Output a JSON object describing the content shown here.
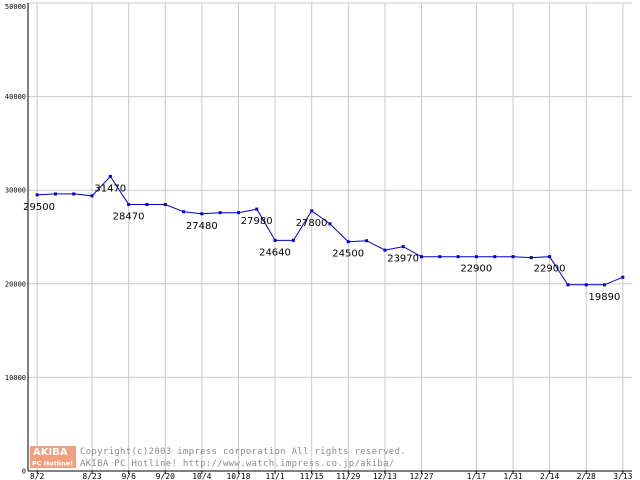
{
  "chart_data": {
    "type": "line",
    "title": "",
    "xlabel": "",
    "ylabel": "",
    "ylim": [
      0,
      50000
    ],
    "y_ticks": [
      "0",
      "10000",
      "20000",
      "30000",
      "40000",
      "50000"
    ],
    "x_tick_labels": [
      "8/2",
      "8/23",
      "9/6",
      "9/20",
      "10/4",
      "10/18",
      "11/1",
      "11/15",
      "11/29",
      "12/13",
      "12/27",
      "1/17",
      "1/31",
      "2/14",
      "2/28",
      "3/13"
    ],
    "grid": true,
    "line_color": "#0000cc",
    "grid_color": "#c8c8c8",
    "x": [
      "8/2",
      "8/9",
      "8/16",
      "8/23",
      "8/30",
      "9/6",
      "9/13",
      "9/20",
      "9/27",
      "10/4",
      "10/11",
      "10/18",
      "10/25",
      "11/1",
      "11/8",
      "11/15",
      "11/22",
      "11/29",
      "12/6",
      "12/13",
      "12/20",
      "12/27",
      "1/3",
      "1/10",
      "1/17",
      "1/24",
      "1/31",
      "2/7",
      "2/14",
      "2/21",
      "2/28",
      "3/6",
      "3/13"
    ],
    "values": [
      29500,
      29600,
      29600,
      29400,
      31470,
      28470,
      28470,
      28470,
      27700,
      27480,
      27600,
      27600,
      27980,
      24640,
      24640,
      27800,
      26400,
      24500,
      24600,
      23600,
      23970,
      22900,
      22900,
      22900,
      22900,
      22900,
      22900,
      22800,
      22900,
      19890,
      19890,
      19890,
      20700
    ],
    "data_labels": [
      {
        "index": 0,
        "text": "29500"
      },
      {
        "index": 4,
        "text": "31470"
      },
      {
        "index": 5,
        "text": "28470"
      },
      {
        "index": 9,
        "text": "27480"
      },
      {
        "index": 12,
        "text": "27980"
      },
      {
        "index": 13,
        "text": "24640"
      },
      {
        "index": 15,
        "text": "27800"
      },
      {
        "index": 17,
        "text": "24500"
      },
      {
        "index": 20,
        "text": "23970"
      },
      {
        "index": 24,
        "text": "22900"
      },
      {
        "index": 28,
        "text": "22900"
      },
      {
        "index": 31,
        "text": "19890"
      }
    ]
  },
  "footer": {
    "logo_top": "AKIBA",
    "logo_bottom": "PC Hotline!",
    "copyright": "Copyright(c)2003 impress corporation All rights reserved.",
    "site": "AKIBA PC Hotline! http://www.watch.impress.co.jp/akiba/",
    "logo_color": "#f0a080"
  }
}
